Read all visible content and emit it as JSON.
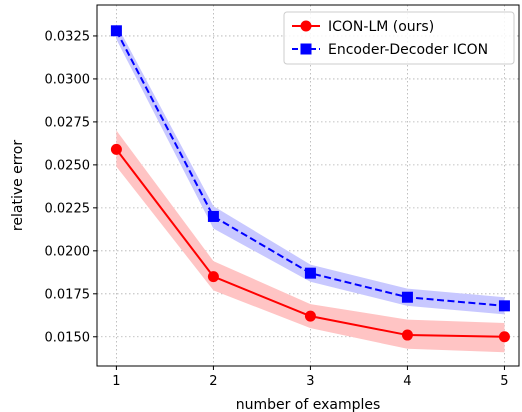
{
  "chart_data": {
    "type": "line",
    "xlabel": "number of examples",
    "ylabel": "relative error",
    "x": [
      1,
      2,
      3,
      4,
      5
    ],
    "xticks": [
      1,
      2,
      3,
      4,
      5
    ],
    "yticks": [
      0.015,
      0.0175,
      0.02,
      0.0225,
      0.025,
      0.0275,
      0.03,
      0.0325
    ],
    "ytick_labels": [
      "0.0150",
      "0.0175",
      "0.0200",
      "0.0225",
      "0.0250",
      "0.0275",
      "0.0300",
      "0.0325"
    ],
    "xlim": [
      0.8,
      5.15
    ],
    "ylim": [
      0.0133,
      0.0343
    ],
    "grid": true,
    "legend_position": "top-right",
    "series": [
      {
        "name": "ICON-LM (ours)",
        "values": [
          0.0259,
          0.0185,
          0.0162,
          0.0151,
          0.015
        ],
        "band_lower": [
          0.0249,
          0.0177,
          0.0155,
          0.0143,
          0.0141
        ],
        "band_upper": [
          0.027,
          0.0194,
          0.0169,
          0.016,
          0.0158
        ],
        "color": "#ff0000",
        "band_color": "#ffc4c4",
        "line_style": "solid",
        "marker": "circle"
      },
      {
        "name": "Encoder-Decoder ICON",
        "values": [
          0.0328,
          0.022,
          0.0187,
          0.0173,
          0.0168
        ],
        "band_lower": [
          0.0323,
          0.0213,
          0.0182,
          0.0168,
          0.0163
        ],
        "band_upper": [
          0.0332,
          0.0226,
          0.0192,
          0.0178,
          0.0173
        ],
        "color": "#0000ff",
        "band_color": "#c8c8ff",
        "line_style": "dashed",
        "marker": "square"
      }
    ]
  }
}
